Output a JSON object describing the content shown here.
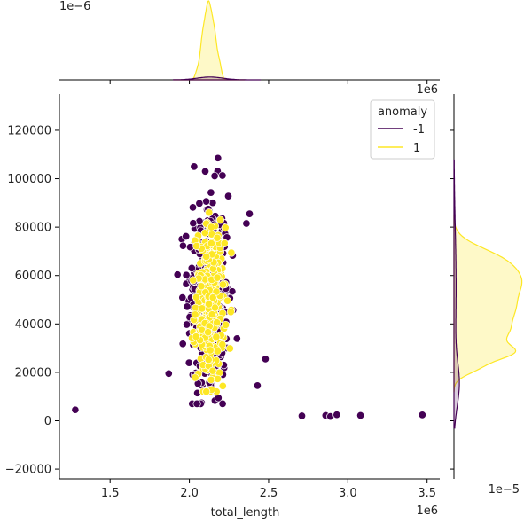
{
  "chart_data": {
    "type": "scatter",
    "xlabel": "total_length",
    "ylabel": "",
    "x_offset_label": "1e6",
    "xlim": [
      1.18,
      3.58
    ],
    "ylim": [
      -24000,
      135000
    ],
    "xticks": [
      {
        "value": 1.5,
        "label": "1.5"
      },
      {
        "value": 2.0,
        "label": "2.0"
      },
      {
        "value": 2.5,
        "label": "2.5"
      },
      {
        "value": 3.0,
        "label": "3.0"
      },
      {
        "value": 3.5,
        "label": "3.5"
      }
    ],
    "yticks": [
      {
        "value": -20000,
        "label": "−20000"
      },
      {
        "value": 0,
        "label": "0"
      },
      {
        "value": 20000,
        "label": "20000"
      },
      {
        "value": 40000,
        "label": "40000"
      },
      {
        "value": 60000,
        "label": "60000"
      },
      {
        "value": 80000,
        "label": "80000"
      },
      {
        "value": 100000,
        "label": "100000"
      },
      {
        "value": 120000,
        "label": "120000"
      }
    ],
    "legend": {
      "title": "anomaly",
      "placement": "top-right",
      "entries": [
        {
          "label": "-1",
          "color": "#440154"
        },
        {
          "label": "1",
          "color": "#fde725"
        }
      ]
    },
    "colors": {
      "anomaly": "#440154",
      "normal": "#fde725"
    },
    "marginal_top": {
      "scale_label": "1e−6",
      "top_axis_offset_label": "1e6",
      "peak_x": 2.12
    },
    "marginal_right": {
      "scale_label": "1e−5"
    },
    "series": [
      {
        "name": "-1",
        "cluster": {
          "x_center": 2.12,
          "x_spread": 0.065,
          "y_center": 50000,
          "y_spread": 22000,
          "count": 360,
          "y_min": 7000,
          "y_max": 108000
        },
        "points": [
          {
            "x": 1.28,
            "y": 4500
          },
          {
            "x": 1.87,
            "y": 19500
          },
          {
            "x": 2.71,
            "y": 2000
          },
          {
            "x": 2.86,
            "y": 2200
          },
          {
            "x": 2.89,
            "y": 1800
          },
          {
            "x": 2.93,
            "y": 2500
          },
          {
            "x": 3.08,
            "y": 2200
          },
          {
            "x": 3.47,
            "y": 2400
          },
          {
            "x": 2.48,
            "y": 25500
          },
          {
            "x": 2.43,
            "y": 14500
          },
          {
            "x": 2.38,
            "y": 85500
          },
          {
            "x": 2.36,
            "y": 81500
          },
          {
            "x": 2.03,
            "y": 105000
          },
          {
            "x": 2.18,
            "y": 108500
          },
          {
            "x": 2.21,
            "y": 7000
          },
          {
            "x": 2.1,
            "y": 103000
          }
        ]
      },
      {
        "name": "1",
        "cluster": {
          "x_center": 2.13,
          "x_spread": 0.045,
          "y_center": 48000,
          "y_spread": 16000,
          "count": 320,
          "y_min": 12000,
          "y_max": 86000
        },
        "points": []
      }
    ]
  }
}
